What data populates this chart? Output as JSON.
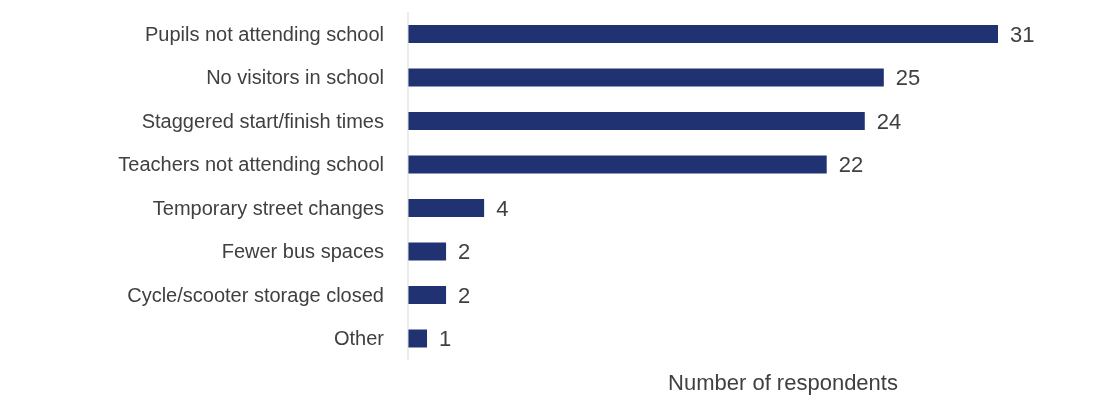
{
  "chart_data": {
    "type": "bar",
    "orientation": "horizontal",
    "xlabel": "Number of respondents",
    "categories": [
      "Pupils not attending school",
      "No visitors in school",
      "Staggered start/finish times",
      "Teachers not attending school",
      "Temporary street changes",
      "Fewer bus spaces",
      "Cycle/scooter storage closed",
      "Other"
    ],
    "values": [
      31,
      25,
      24,
      22,
      4,
      2,
      2,
      1
    ],
    "color": "#203272",
    "data_labels": true,
    "grid": false,
    "legend": false
  }
}
